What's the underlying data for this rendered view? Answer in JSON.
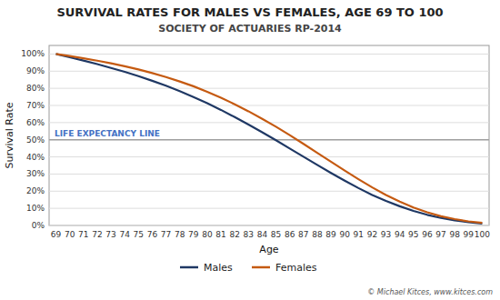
{
  "chart_data": {
    "type": "line",
    "title": "SURVIVAL RATES FOR MALES VS FEMALES, AGE 69 TO 100",
    "subtitle": "SOCIETY OF ACTUARIES RP-2014",
    "x_label": "Age",
    "y_label": "Survival Rate",
    "x": [
      69,
      70,
      71,
      72,
      73,
      74,
      75,
      76,
      77,
      78,
      79,
      80,
      81,
      82,
      83,
      84,
      85,
      86,
      87,
      88,
      89,
      90,
      91,
      92,
      93,
      94,
      95,
      96,
      97,
      98,
      99,
      100
    ],
    "series": [
      {
        "name": "Males",
        "color": "#1f3864",
        "values": [
          1.0,
          0.981,
          0.962,
          0.941,
          0.919,
          0.896,
          0.871,
          0.844,
          0.815,
          0.783,
          0.749,
          0.713,
          0.674,
          0.632,
          0.589,
          0.544,
          0.497,
          0.449,
          0.401,
          0.353,
          0.306,
          0.261,
          0.218,
          0.178,
          0.143,
          0.112,
          0.085,
          0.062,
          0.044,
          0.03,
          0.019,
          0.011
        ]
      },
      {
        "name": "Females",
        "color": "#c55a11",
        "values": [
          1.0,
          0.988,
          0.975,
          0.961,
          0.946,
          0.929,
          0.91,
          0.889,
          0.866,
          0.84,
          0.812,
          0.78,
          0.745,
          0.707,
          0.666,
          0.622,
          0.576,
          0.527,
          0.476,
          0.424,
          0.372,
          0.32,
          0.27,
          0.222,
          0.178,
          0.139,
          0.105,
          0.077,
          0.054,
          0.037,
          0.024,
          0.015
        ]
      }
    ],
    "xlim": [
      68.5,
      100.5
    ],
    "xticks": [
      69,
      70,
      71,
      72,
      73,
      74,
      75,
      76,
      77,
      78,
      79,
      80,
      81,
      82,
      83,
      84,
      85,
      86,
      87,
      88,
      89,
      90,
      91,
      92,
      93,
      94,
      95,
      96,
      97,
      98,
      99,
      100
    ],
    "ylim": [
      0,
      1.05
    ],
    "yticks": [
      {
        "value": 0,
        "label": "0%"
      },
      {
        "value": 0.1,
        "label": "10%"
      },
      {
        "value": 0.2,
        "label": "20%"
      },
      {
        "value": 0.3,
        "label": "30%"
      },
      {
        "value": 0.4,
        "label": "40%"
      },
      {
        "value": 0.5,
        "label": "50%"
      },
      {
        "value": 0.6,
        "label": "60%"
      },
      {
        "value": 0.7,
        "label": "70%"
      },
      {
        "value": 0.8,
        "label": "80%"
      },
      {
        "value": 0.9,
        "label": "90%"
      },
      {
        "value": 1.0,
        "label": "100%"
      }
    ],
    "grid": true,
    "legend": "bottom",
    "annotations": [
      {
        "text": "LIFE EXPECTANCY LINE",
        "y": 0.5,
        "color": "#4472c4"
      },
      {
        "text": "© Michael Kitces, www.kitces.com"
      }
    ]
  }
}
